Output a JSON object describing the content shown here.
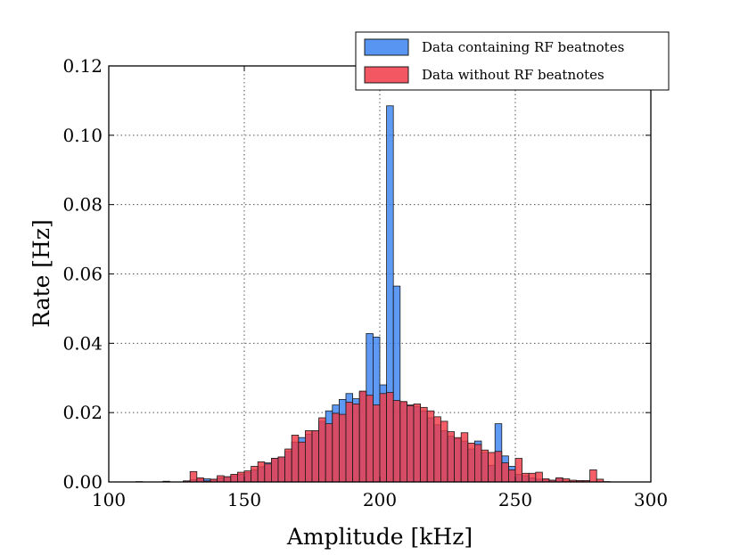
{
  "chart_data": {
    "type": "bar",
    "subtype": "overlapping-histogram",
    "title": "",
    "xlabel": "Amplitude [kHz]",
    "ylabel": "Rate [Hz]",
    "xlim": [
      100,
      300
    ],
    "ylim": [
      0,
      0.12
    ],
    "xticks": [
      100,
      150,
      200,
      250,
      300
    ],
    "yticks": [
      0.0,
      0.02,
      0.04,
      0.06,
      0.08,
      0.1,
      0.12
    ],
    "xtick_labels": [
      "100",
      "150",
      "200",
      "250",
      "300"
    ],
    "ytick_labels": [
      "0.00",
      "0.02",
      "0.04",
      "0.06",
      "0.08",
      "0.10",
      "0.12"
    ],
    "grid": true,
    "legend_position": "top-right",
    "bin_width": 2.5,
    "bin_centers": [
      106.25,
      108.75,
      111.25,
      113.75,
      116.25,
      118.75,
      121.25,
      123.75,
      126.25,
      128.75,
      131.25,
      133.75,
      136.25,
      138.75,
      141.25,
      143.75,
      146.25,
      148.75,
      151.25,
      153.75,
      156.25,
      158.75,
      161.25,
      163.75,
      166.25,
      168.75,
      171.25,
      173.75,
      176.25,
      178.75,
      181.25,
      183.75,
      186.25,
      188.75,
      191.25,
      193.75,
      196.25,
      198.75,
      201.25,
      203.75,
      206.25,
      208.75,
      211.25,
      213.75,
      216.25,
      218.75,
      221.25,
      223.75,
      226.25,
      228.75,
      231.25,
      233.75,
      236.25,
      238.75,
      241.25,
      243.75,
      246.25,
      248.75,
      251.25,
      253.75,
      256.25,
      258.75,
      261.25,
      263.75,
      266.25,
      268.75,
      271.25,
      273.75,
      276.25,
      278.75,
      281.25,
      283.75,
      286.25,
      288.75
    ],
    "series": [
      {
        "name": "Data containing RF beatnotes",
        "color": "#3b82f0",
        "values": [
          0,
          0,
          0.0001,
          0,
          0,
          0,
          0.0002,
          0,
          0,
          0.0003,
          0.0006,
          0.0008,
          0.0009,
          0.0006,
          0.0012,
          0.0015,
          0.0018,
          0.0022,
          0.0027,
          0.0035,
          0.0044,
          0.0055,
          0.0068,
          0.0072,
          0.0088,
          0.0115,
          0.0128,
          0.0138,
          0.0148,
          0.0175,
          0.0205,
          0.0222,
          0.0238,
          0.0255,
          0.024,
          0.026,
          0.0428,
          0.0418,
          0.028,
          0.1085,
          0.0565,
          0.023,
          0.0222,
          0.0218,
          0.0205,
          0.0185,
          0.0165,
          0.0148,
          0.0132,
          0.0125,
          0.0118,
          0.0095,
          0.0118,
          0.0085,
          0.0048,
          0.0168,
          0.0075,
          0.0045,
          0.0022,
          0.0018,
          0.0012,
          0.0008,
          0.0006,
          0.0005,
          0.0012,
          0.0003,
          0.0002,
          0.0002,
          0.0001,
          0,
          0,
          0,
          0,
          0
        ]
      },
      {
        "name": "Data without RF beatnotes",
        "color": "#f03a47",
        "values": [
          0,
          0,
          0,
          0,
          0,
          0,
          0,
          0,
          0,
          0.0003,
          0.003,
          0.0012,
          0.0003,
          0.0008,
          0.0018,
          0.0015,
          0.0022,
          0.0028,
          0.0032,
          0.0045,
          0.0058,
          0.0052,
          0.0068,
          0.0072,
          0.0095,
          0.0135,
          0.0115,
          0.0148,
          0.0148,
          0.0185,
          0.0168,
          0.0198,
          0.0195,
          0.023,
          0.0225,
          0.0262,
          0.025,
          0.0222,
          0.0255,
          0.0258,
          0.0235,
          0.0232,
          0.022,
          0.0225,
          0.0215,
          0.0205,
          0.0188,
          0.0175,
          0.0145,
          0.0128,
          0.0142,
          0.0112,
          0.0108,
          0.0092,
          0.0085,
          0.0088,
          0.0055,
          0.0035,
          0.0068,
          0.0025,
          0.0025,
          0.0028,
          0.0009,
          0.0005,
          0.0012,
          0.0009,
          0.0005,
          0.0004,
          0.0004,
          0.0035,
          0.0008,
          0.0001,
          0,
          0
        ]
      }
    ]
  }
}
